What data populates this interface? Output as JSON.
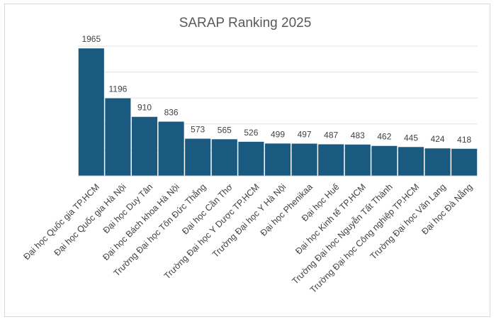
{
  "chart_data": {
    "type": "bar",
    "title": "SARAP Ranking 2025",
    "xlabel": "",
    "ylabel": "",
    "ylim": [
      0,
      2000
    ],
    "grid": true,
    "legend": "none",
    "bar_color": "#1b5a80",
    "categories": [
      "Đại học Quốc gia TP.HCM",
      "Đại học Quốc gia Hà Nội",
      "Đại học Duy Tân",
      "Đại học Bách khoa Hà Nội",
      "Trường Đại học Tôn Đức Thắng",
      "Đại học Cần Thơ",
      "Trường Đại học Y Dược TP.HCM",
      "Trường Đại học Y Hà Nội",
      "Đại học Phenikaa",
      "Đại học Huế",
      "Đại học Kinh tế TP.HCM",
      "Trường Đại học Nguyễn Tất Thành",
      "Trường Đại học Công nghiệp TP.HCM",
      "Trường Đại học Văn Lang",
      "Đại học Đà Nẵng"
    ],
    "values": [
      1965,
      1196,
      910,
      836,
      573,
      565,
      526,
      499,
      497,
      487,
      483,
      462,
      445,
      424,
      418
    ]
  }
}
